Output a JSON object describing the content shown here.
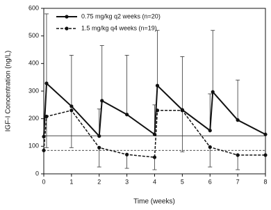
{
  "chart_data": {
    "type": "line",
    "ylabel": "IGF-I Concentration (ng/L)",
    "xlabel": "Time (weeks)",
    "xlim": [
      0,
      8
    ],
    "xticks": [
      0,
      1,
      2,
      3,
      4,
      5,
      6,
      7,
      8
    ],
    "ylim": [
      0,
      600
    ],
    "yticks": [
      0,
      100,
      200,
      300,
      400,
      500,
      600
    ],
    "grid": false,
    "legend": "upper-left",
    "reference_lines": [
      {
        "value": 138,
        "style": "solid"
      },
      {
        "value": 85,
        "style": "dashed"
      }
    ],
    "series": [
      {
        "name": "0.75 mg/kg q2 weeks (n=20)",
        "color": "#111111",
        "style": "solid",
        "error_direction": "up",
        "x": [
          0,
          0.1,
          1,
          2,
          2.1,
          3,
          4,
          4.1,
          5,
          6,
          6.1,
          7,
          8
        ],
        "values": [
          135,
          328,
          245,
          137,
          265,
          215,
          143,
          320,
          232,
          157,
          297,
          195,
          143
        ],
        "errors": [
          null,
          252,
          185,
          98,
          200,
          215,
          107,
          200,
          193,
          133,
          223,
          145,
          null
        ]
      },
      {
        "name": "1.5 mg/kg q4 weeks (n=19)",
        "color": "#111111",
        "style": "dashed",
        "error_direction": "down",
        "x": [
          0,
          0.1,
          1,
          2,
          3,
          4,
          4.1,
          5,
          6,
          7,
          8
        ],
        "values": [
          85,
          208,
          230,
          95,
          70,
          60,
          230,
          230,
          97,
          68,
          68
        ],
        "errors": [
          null,
          113,
          135,
          70,
          50,
          45,
          null,
          150,
          72,
          53,
          null
        ]
      }
    ]
  }
}
